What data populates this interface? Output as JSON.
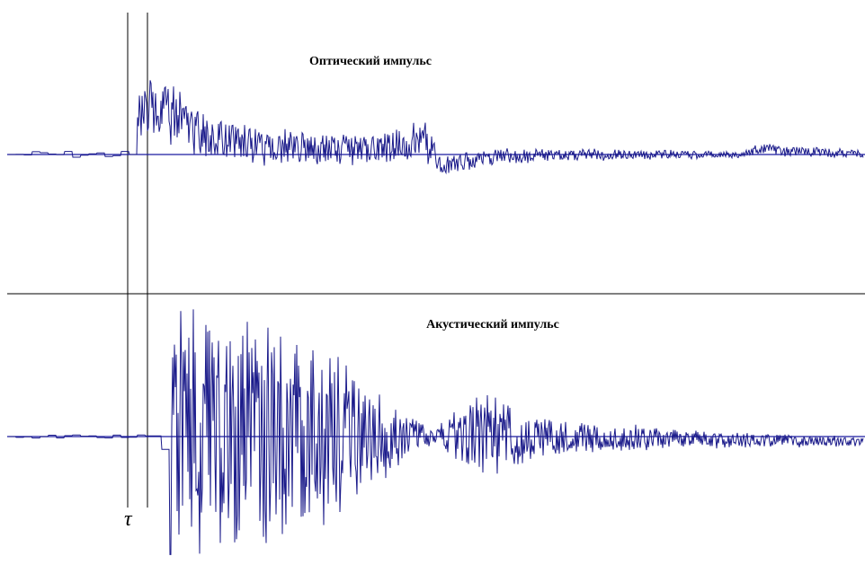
{
  "chart_data": [
    {
      "type": "line",
      "title": "Оптический импульс",
      "grid": false,
      "colors": {
        "signal": "#1a1a8a",
        "baseline": "#1a1aa0"
      },
      "envelope": [
        {
          "t": 0.0,
          "amp": 4,
          "offset": 0,
          "style": "step"
        },
        {
          "t": 0.14,
          "amp": 4,
          "offset": 0,
          "style": "step"
        },
        {
          "t": 0.15,
          "amp": 30,
          "offset": -45
        },
        {
          "t": 0.175,
          "amp": 38,
          "offset": -55
        },
        {
          "t": 0.22,
          "amp": 30,
          "offset": -25
        },
        {
          "t": 0.3,
          "amp": 22,
          "offset": -8
        },
        {
          "t": 0.42,
          "amp": 20,
          "offset": -6
        },
        {
          "t": 0.49,
          "amp": 25,
          "offset": -14
        },
        {
          "t": 0.505,
          "amp": 14,
          "offset": 12
        },
        {
          "t": 0.58,
          "amp": 9,
          "offset": 2
        },
        {
          "t": 0.7,
          "amp": 7,
          "offset": 0
        },
        {
          "t": 0.86,
          "amp": 4,
          "offset": 0
        },
        {
          "t": 0.875,
          "amp": 8,
          "offset": -6
        },
        {
          "t": 1.0,
          "amp": 5,
          "offset": 0
        }
      ]
    },
    {
      "type": "line",
      "title": "Акустический импульс",
      "grid": false,
      "colors": {
        "signal": "#1a1a8a",
        "baseline": "#1a1aa0"
      },
      "envelope": [
        {
          "t": 0.0,
          "amp": 2,
          "offset": 0,
          "style": "step"
        },
        {
          "t": 0.17,
          "amp": 2,
          "offset": 0,
          "style": "step"
        },
        {
          "t": 0.19,
          "amp": 150,
          "offset": 0
        },
        {
          "t": 0.31,
          "amp": 150,
          "offset": 0
        },
        {
          "t": 0.37,
          "amp": 110,
          "offset": 0
        },
        {
          "t": 0.45,
          "amp": 40,
          "offset": 0
        },
        {
          "t": 0.5,
          "amp": 10,
          "offset": 0
        },
        {
          "t": 0.55,
          "amp": 60,
          "offset": 0
        },
        {
          "t": 0.62,
          "amp": 25,
          "offset": 0
        },
        {
          "t": 0.78,
          "amp": 12,
          "offset": 2
        },
        {
          "t": 1.0,
          "amp": 6,
          "offset": 6
        }
      ]
    }
  ],
  "marker_label": "τ"
}
